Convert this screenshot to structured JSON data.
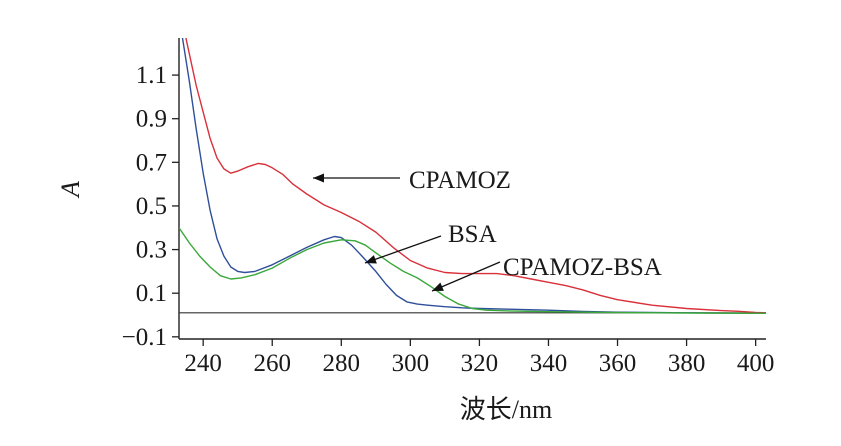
{
  "chart_data": {
    "type": "line",
    "xlabel": "波长/nm",
    "ylabel": "A",
    "xlim": [
      233,
      403
    ],
    "ylim": [
      -0.11,
      1.27
    ],
    "xticks": [
      240,
      260,
      280,
      300,
      320,
      340,
      360,
      380,
      400
    ],
    "xtick_labels": [
      "240",
      "260",
      "280",
      "300",
      "320",
      "340",
      "360",
      "380",
      "400"
    ],
    "yticks": [
      -0.1,
      0.1,
      0.3,
      0.5,
      0.7,
      0.9,
      1.1
    ],
    "ytick_labels": [
      "−0.1",
      "0.1",
      "0.3",
      "0.5",
      "0.7",
      "0.9",
      "1.1"
    ],
    "grid": false,
    "baseline_y": 0.01,
    "series": [
      {
        "name": "CPAMOZ",
        "color": "#d9303a",
        "x": [
          235,
          238,
          240,
          242,
          244,
          246,
          248,
          250,
          253,
          256,
          258,
          260,
          263,
          266,
          270,
          275,
          280,
          285,
          290,
          295,
          300,
          305,
          310,
          315,
          320,
          325,
          330,
          335,
          340,
          345,
          350,
          355,
          360,
          370,
          380,
          390,
          395,
          400,
          403
        ],
        "y": [
          1.27,
          1.05,
          0.93,
          0.81,
          0.72,
          0.67,
          0.65,
          0.66,
          0.68,
          0.695,
          0.69,
          0.675,
          0.645,
          0.6,
          0.555,
          0.505,
          0.47,
          0.43,
          0.38,
          0.31,
          0.25,
          0.215,
          0.195,
          0.19,
          0.19,
          0.19,
          0.18,
          0.165,
          0.15,
          0.135,
          0.115,
          0.09,
          0.07,
          0.045,
          0.03,
          0.02,
          0.017,
          0.012,
          0.01
        ]
      },
      {
        "name": "BSA",
        "color": "#2f4f9a",
        "x": [
          234,
          236,
          238,
          240,
          242,
          244,
          246,
          248,
          250,
          252,
          255,
          260,
          265,
          270,
          275,
          278,
          280,
          283,
          286,
          290,
          293,
          296,
          299,
          302,
          305,
          310,
          315,
          320,
          330,
          340,
          350,
          360,
          380,
          400,
          403
        ],
        "y": [
          1.27,
          1.07,
          0.85,
          0.65,
          0.48,
          0.35,
          0.27,
          0.22,
          0.2,
          0.195,
          0.2,
          0.23,
          0.27,
          0.31,
          0.345,
          0.36,
          0.355,
          0.32,
          0.27,
          0.2,
          0.14,
          0.09,
          0.06,
          0.05,
          0.045,
          0.038,
          0.033,
          0.03,
          0.026,
          0.022,
          0.016,
          0.013,
          0.01,
          0.008,
          0.008
        ]
      },
      {
        "name": "CPAMOZ-BSA",
        "color": "#3aa83a",
        "x": [
          233,
          236,
          239,
          242,
          245,
          248,
          251,
          255,
          260,
          265,
          270,
          275,
          280,
          284,
          287,
          290,
          294,
          298,
          302,
          306,
          310,
          314,
          318,
          322,
          330,
          340,
          350,
          360,
          380,
          400,
          403
        ],
        "y": [
          0.4,
          0.33,
          0.27,
          0.22,
          0.18,
          0.165,
          0.17,
          0.185,
          0.215,
          0.26,
          0.3,
          0.33,
          0.345,
          0.34,
          0.32,
          0.285,
          0.24,
          0.2,
          0.17,
          0.13,
          0.085,
          0.05,
          0.03,
          0.022,
          0.018,
          0.015,
          0.013,
          0.011,
          0.009,
          0.008,
          0.008
        ]
      }
    ],
    "annotations": [
      {
        "text": "CPAMOZ"
      },
      {
        "text": "BSA"
      },
      {
        "text": "CPAMOZ-BSA"
      }
    ]
  }
}
